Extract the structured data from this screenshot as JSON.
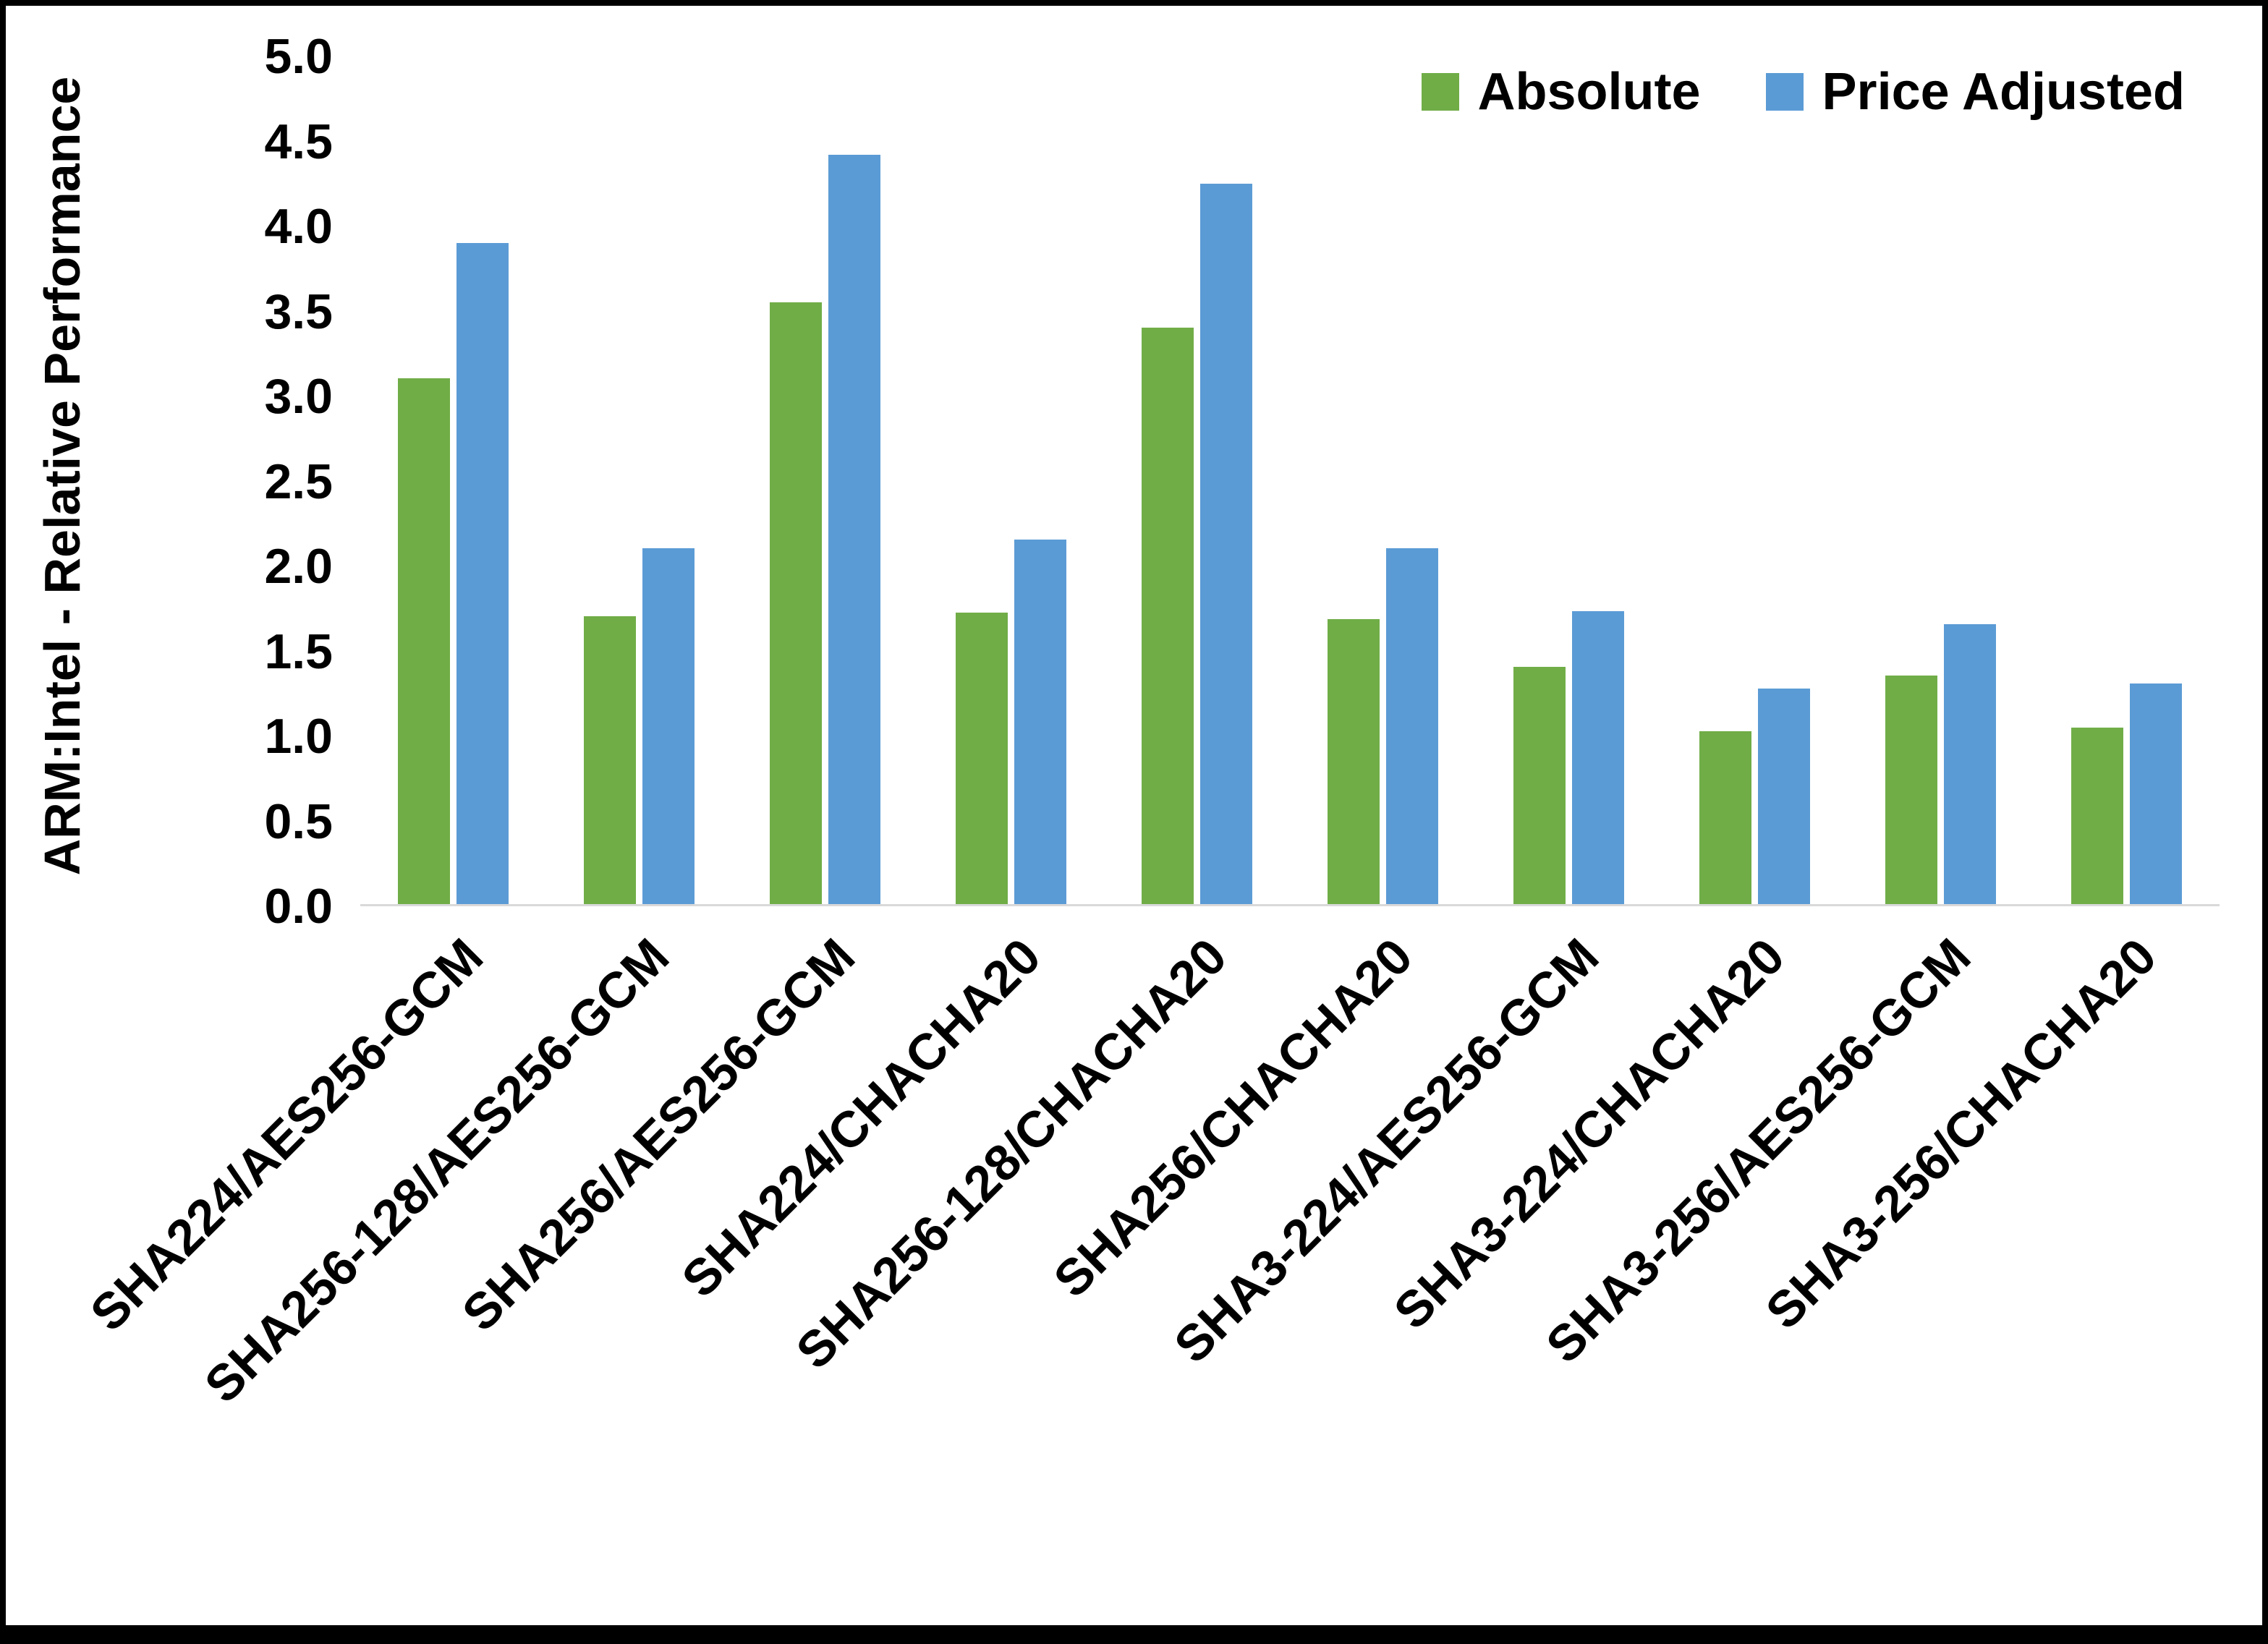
{
  "chart_data": {
    "type": "bar",
    "title": "",
    "ylabel": "ARM:Intel - Relative Performance",
    "xlabel": "",
    "ylim": [
      0,
      5.0
    ],
    "ytick_step": 0.5,
    "ytick_labels": [
      "0.0",
      "0.5",
      "1.0",
      "1.5",
      "2.0",
      "2.5",
      "3.0",
      "3.5",
      "4.0",
      "4.5",
      "5.0"
    ],
    "grid": false,
    "legend_position": "top-right",
    "categories": [
      "SHA224/AES256-GCM",
      "SHA256-128/AES256-GCM",
      "SHA256/AES256-GCM",
      "SHA224/CHACHA20",
      "SHA256-128/CHACHA20",
      "SHA256/CHACHA20",
      "SHA3-224/AES256-GCM",
      "SHA3-224/CHACHA20",
      "SHA3-256/AES256-GCM",
      "SHA3-256/CHACHA20"
    ],
    "series": [
      {
        "name": "Absolute",
        "color": "#70AD47",
        "values": [
          3.1,
          1.7,
          3.55,
          1.72,
          3.4,
          1.68,
          1.4,
          1.02,
          1.35,
          1.04
        ]
      },
      {
        "name": "Price Adjusted",
        "color": "#5B9BD5",
        "values": [
          3.9,
          2.1,
          4.42,
          2.15,
          4.25,
          2.1,
          1.73,
          1.27,
          1.65,
          1.3
        ]
      }
    ]
  },
  "colors": {
    "axis_line": "#D9D9D9",
    "text": "#000000",
    "border": "#000000",
    "background": "#FFFFFF"
  }
}
